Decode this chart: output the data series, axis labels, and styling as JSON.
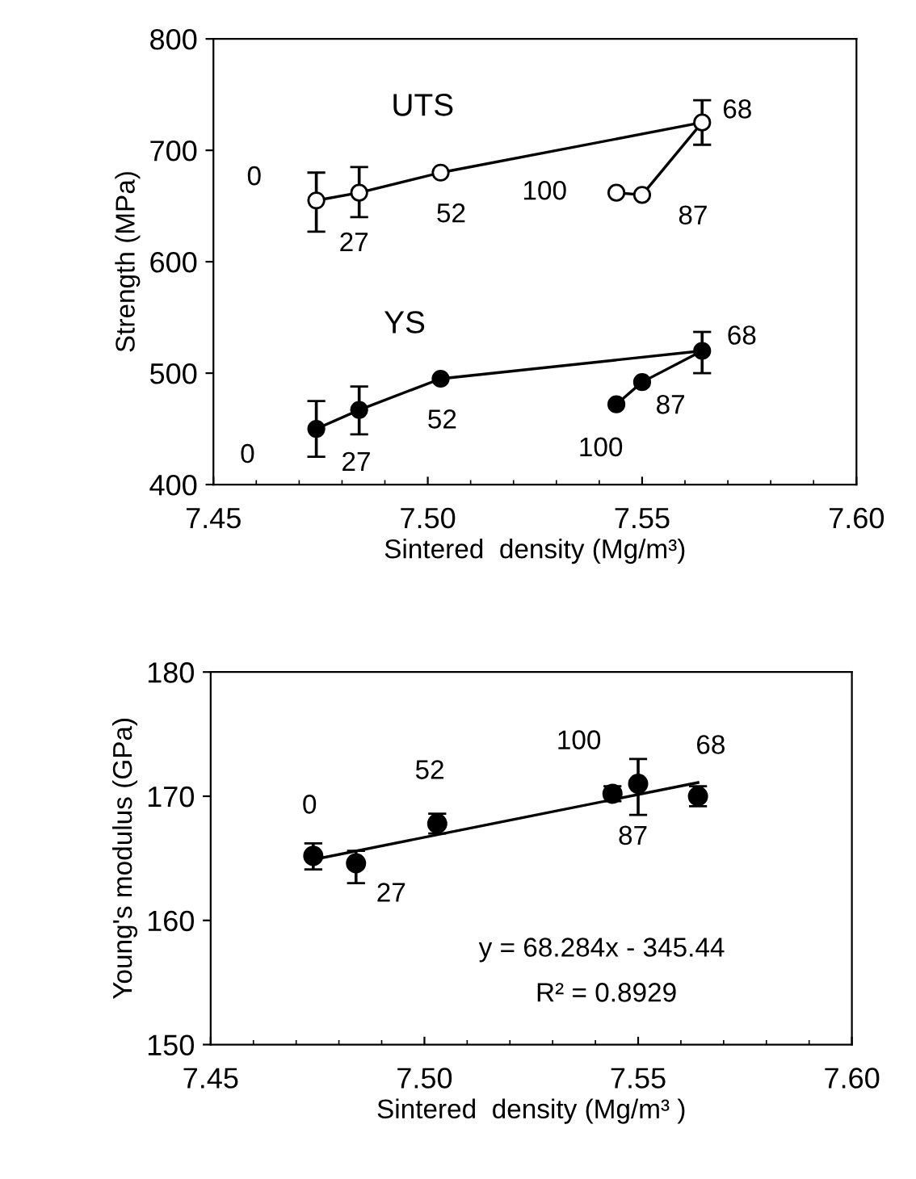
{
  "chart_data": [
    {
      "type": "line",
      "xlabel": "Sintered  density (Mg/m³)",
      "ylabel": "Strength (MPa)",
      "x": [
        7.474,
        7.484,
        7.503,
        7.564,
        7.55,
        7.544
      ],
      "series": [
        {
          "name": "UTS",
          "color": "#000000",
          "values": [
            655,
            662,
            680,
            725,
            660,
            662
          ],
          "errors": [
            [
              627,
              680
            ],
            [
              640,
              685
            ],
            null,
            [
              705,
              745
            ],
            null,
            null
          ]
        },
        {
          "name": "YS",
          "color": "#000000",
          "values": [
            450,
            467,
            495,
            520,
            492,
            472
          ],
          "errors": [
            [
              425,
              475
            ],
            [
              445,
              488
            ],
            null,
            [
              500,
              537
            ],
            null,
            null
          ]
        }
      ],
      "annotations": [
        {
          "text": "0",
          "x": 7.474,
          "y": 655
        },
        {
          "text": "27",
          "x": 7.484,
          "y": 662
        },
        {
          "text": "52",
          "x": 7.503,
          "y": 680
        },
        {
          "text": "68",
          "x": 7.564,
          "y": 725
        },
        {
          "text": "87",
          "x": 7.55,
          "y": 660
        },
        {
          "text": "100",
          "x": 7.544,
          "y": 662
        },
        {
          "text": "0",
          "x": 7.474,
          "y": 450
        },
        {
          "text": "27",
          "x": 7.484,
          "y": 467
        },
        {
          "text": "52",
          "x": 7.503,
          "y": 495
        },
        {
          "text": "68",
          "x": 7.564,
          "y": 520
        },
        {
          "text": "87",
          "x": 7.55,
          "y": 492
        },
        {
          "text": "100",
          "x": 7.544,
          "y": 472
        }
      ],
      "xlim": [
        7.45,
        7.6
      ],
      "xticks": [
        {
          "value": 7.45,
          "label": "7.45"
        },
        {
          "value": 7.5,
          "label": "7.50"
        },
        {
          "value": 7.55,
          "label": "7.55"
        },
        {
          "value": 7.6,
          "label": "7.60"
        }
      ],
      "ylim": [
        400,
        800
      ],
      "yticks": [
        400,
        500,
        600,
        700,
        800
      ],
      "marker": "circle",
      "line_style": "solid",
      "grid": false,
      "legend": false
    },
    {
      "type": "scatter",
      "xlabel": "Sintered  density (Mg/m³ )",
      "ylabel": "Young's modulus (GPa)",
      "x": [
        7.474,
        7.484,
        7.503,
        7.544,
        7.55,
        7.564
      ],
      "series": [
        {
          "color": "#000000",
          "values": [
            165.2,
            164.6,
            167.8,
            170.2,
            171.0,
            170.0
          ],
          "errors": [
            [
              164.1,
              166.2
            ],
            [
              163.0,
              165.6
            ],
            [
              167.0,
              168.6
            ],
            [
              169.6,
              170.8
            ],
            [
              168.5,
              173.0
            ],
            [
              169.2,
              170.8
            ]
          ]
        },
        {
          "type": "line",
          "color": "#000000",
          "marker": "none",
          "x": [
            7.474,
            7.564
          ],
          "values": [
            164.9,
            171.1
          ]
        }
      ],
      "annotations": [
        {
          "text": "0",
          "x": 7.474,
          "y": 165.2
        },
        {
          "text": "27",
          "x": 7.484,
          "y": 164.6
        },
        {
          "text": "52",
          "x": 7.503,
          "y": 167.8
        },
        {
          "text": "100",
          "x": 7.544,
          "y": 170.2
        },
        {
          "text": "87",
          "x": 7.55,
          "y": 171.0
        },
        {
          "text": "68",
          "x": 7.564,
          "y": 170.0
        },
        "y = 68.284x - 345.44",
        "R² = 0.8929"
      ],
      "xlim": [
        7.45,
        7.6
      ],
      "xticks": [
        {
          "value": 7.45,
          "label": "7.45"
        },
        {
          "value": 7.5,
          "label": "7.50"
        },
        {
          "value": 7.55,
          "label": "7.55"
        },
        {
          "value": 7.6,
          "label": "7.60"
        }
      ],
      "ylim": [
        150,
        180
      ],
      "yticks": [
        150,
        160,
        170,
        180
      ],
      "marker": "circle",
      "grid": false,
      "legend": false
    }
  ]
}
